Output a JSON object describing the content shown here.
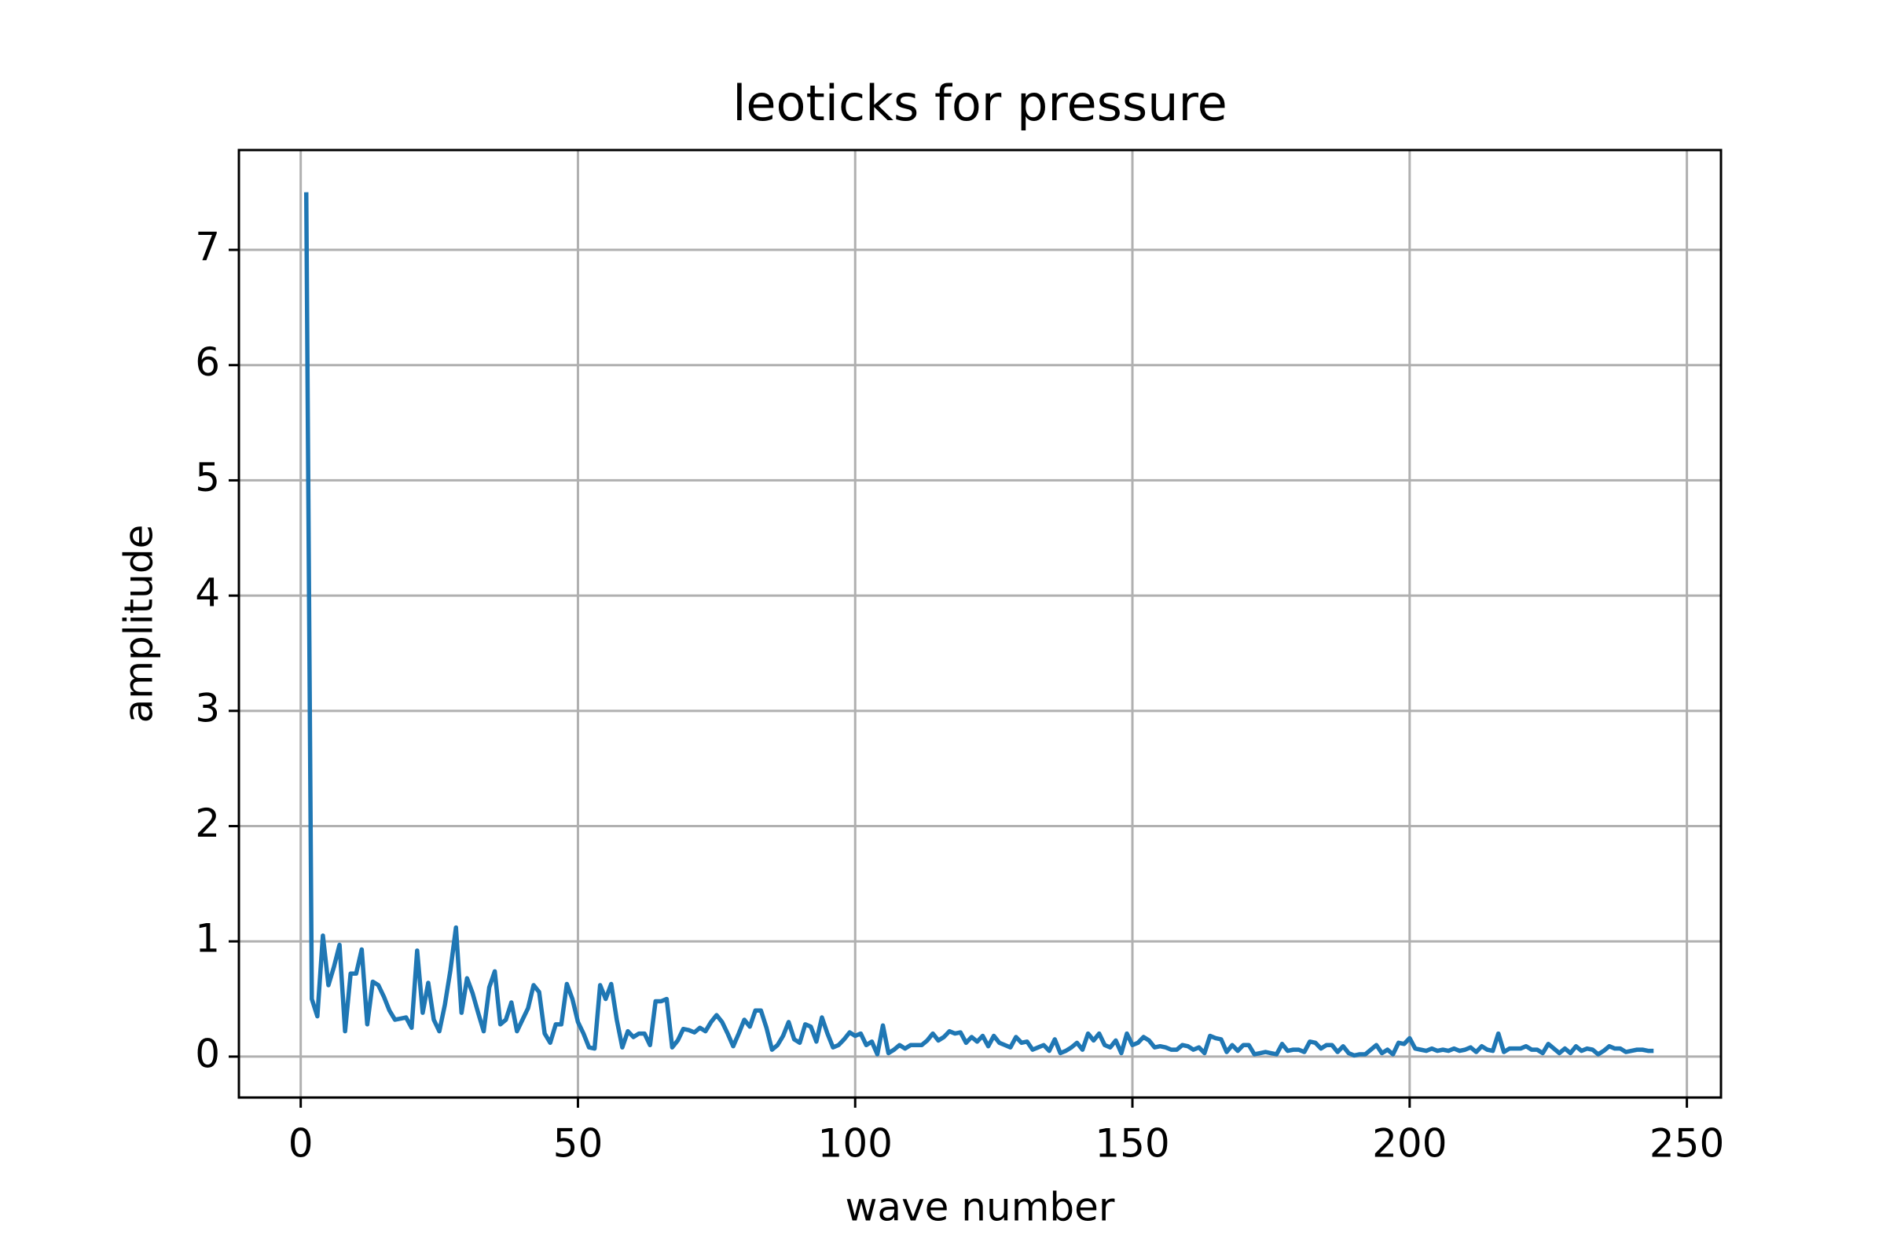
{
  "chart_data": {
    "type": "line",
    "title": "leoticks for pressure",
    "x_label": "wave number",
    "y_label": "amplitude",
    "x": [
      1,
      2,
      3,
      4,
      5,
      6,
      7,
      8,
      9,
      10,
      11,
      12,
      13,
      14,
      15,
      16,
      17,
      18,
      19,
      20,
      21,
      22,
      23,
      24,
      25,
      26,
      27,
      28,
      29,
      30,
      31,
      32,
      33,
      34,
      35,
      36,
      37,
      38,
      39,
      40,
      41,
      42,
      43,
      44,
      45,
      46,
      47,
      48,
      49,
      50,
      51,
      52,
      53,
      54,
      55,
      56,
      57,
      58,
      59,
      60,
      61,
      62,
      63,
      64,
      65,
      66,
      67,
      68,
      69,
      70,
      71,
      72,
      73,
      74,
      75,
      76,
      77,
      78,
      79,
      80,
      81,
      82,
      83,
      84,
      85,
      86,
      87,
      88,
      89,
      90,
      91,
      92,
      93,
      94,
      95,
      96,
      97,
      98,
      99,
      100,
      101,
      102,
      103,
      104,
      105,
      106,
      107,
      108,
      109,
      110,
      111,
      112,
      113,
      114,
      115,
      116,
      117,
      118,
      119,
      120,
      121,
      122,
      123,
      124,
      125,
      126,
      127,
      128,
      129,
      130,
      131,
      132,
      133,
      134,
      135,
      136,
      137,
      138,
      139,
      140,
      141,
      142,
      143,
      144,
      145,
      146,
      147,
      148,
      149,
      150,
      151,
      152,
      153,
      154,
      155,
      156,
      157,
      158,
      159,
      160,
      161,
      162,
      163,
      164,
      165,
      166,
      167,
      168,
      169,
      170,
      171,
      172,
      173,
      174,
      175,
      176,
      177,
      178,
      179,
      180,
      181,
      182,
      183,
      184,
      185,
      186,
      187,
      188,
      189,
      190,
      191,
      192,
      193,
      194,
      195,
      196,
      197,
      198,
      199,
      200,
      201,
      202,
      203,
      204,
      205,
      206,
      207,
      208,
      209,
      210,
      211,
      212,
      213,
      214,
      215,
      216,
      217,
      218,
      219,
      220,
      221,
      222,
      223,
      224,
      225,
      226,
      227,
      228,
      229,
      230,
      231,
      232,
      233,
      234,
      235,
      236,
      237,
      238,
      239,
      240,
      241,
      242,
      243,
      244
    ],
    "series": [
      {
        "name": "amplitude",
        "color": "#1f77b4",
        "values": [
          7.5,
          0.5,
          0.35,
          1.05,
          0.62,
          0.78,
          0.97,
          0.22,
          0.72,
          0.72,
          0.93,
          0.28,
          0.65,
          0.62,
          0.52,
          0.4,
          0.32,
          0.33,
          0.34,
          0.25,
          0.92,
          0.38,
          0.64,
          0.32,
          0.22,
          0.45,
          0.75,
          1.12,
          0.38,
          0.68,
          0.55,
          0.38,
          0.22,
          0.6,
          0.74,
          0.28,
          0.32,
          0.47,
          0.22,
          0.32,
          0.42,
          0.62,
          0.56,
          0.2,
          0.12,
          0.28,
          0.28,
          0.63,
          0.5,
          0.3,
          0.2,
          0.08,
          0.07,
          0.62,
          0.5,
          0.63,
          0.32,
          0.08,
          0.22,
          0.17,
          0.2,
          0.2,
          0.1,
          0.48,
          0.48,
          0.5,
          0.08,
          0.14,
          0.24,
          0.23,
          0.21,
          0.25,
          0.22,
          0.3,
          0.36,
          0.3,
          0.2,
          0.09,
          0.2,
          0.32,
          0.26,
          0.4,
          0.4,
          0.25,
          0.06,
          0.1,
          0.18,
          0.3,
          0.15,
          0.12,
          0.28,
          0.26,
          0.13,
          0.34,
          0.2,
          0.08,
          0.1,
          0.15,
          0.21,
          0.18,
          0.2,
          0.1,
          0.13,
          0.02,
          0.27,
          0.03,
          0.06,
          0.1,
          0.07,
          0.1,
          0.1,
          0.1,
          0.14,
          0.2,
          0.14,
          0.17,
          0.22,
          0.2,
          0.21,
          0.12,
          0.17,
          0.13,
          0.18,
          0.09,
          0.18,
          0.12,
          0.1,
          0.08,
          0.17,
          0.12,
          0.13,
          0.06,
          0.08,
          0.1,
          0.05,
          0.15,
          0.03,
          0.05,
          0.08,
          0.12,
          0.06,
          0.2,
          0.14,
          0.2,
          0.1,
          0.08,
          0.14,
          0.03,
          0.2,
          0.1,
          0.12,
          0.17,
          0.14,
          0.08,
          0.09,
          0.08,
          0.06,
          0.06,
          0.1,
          0.09,
          0.06,
          0.08,
          0.03,
          0.18,
          0.16,
          0.15,
          0.04,
          0.1,
          0.05,
          0.1,
          0.1,
          0.02,
          0.03,
          0.04,
          0.03,
          0.02,
          0.11,
          0.05,
          0.06,
          0.06,
          0.04,
          0.13,
          0.12,
          0.07,
          0.1,
          0.1,
          0.04,
          0.09,
          0.03,
          0.01,
          0.02,
          0.02,
          0.06,
          0.1,
          0.03,
          0.06,
          0.02,
          0.12,
          0.11,
          0.16,
          0.07,
          0.06,
          0.05,
          0.07,
          0.05,
          0.06,
          0.05,
          0.07,
          0.05,
          0.06,
          0.08,
          0.04,
          0.09,
          0.06,
          0.05,
          0.2,
          0.04,
          0.07,
          0.07,
          0.07,
          0.09,
          0.06,
          0.06,
          0.03,
          0.11,
          0.07,
          0.03,
          0.07,
          0.03,
          0.09,
          0.05,
          0.07,
          0.06,
          0.02,
          0.05,
          0.09,
          0.07,
          0.07,
          0.04,
          0.05,
          0.06,
          0.06,
          0.05,
          0.05
        ]
      }
    ],
    "xlim": [
      -11.15,
      256.15
    ],
    "xticks": [
      0,
      50,
      100,
      150,
      200,
      250
    ],
    "ylim": [
      -0.355,
      7.866
    ],
    "yticks": [
      0,
      1,
      2,
      3,
      4,
      5,
      6,
      7
    ],
    "grid": true
  }
}
